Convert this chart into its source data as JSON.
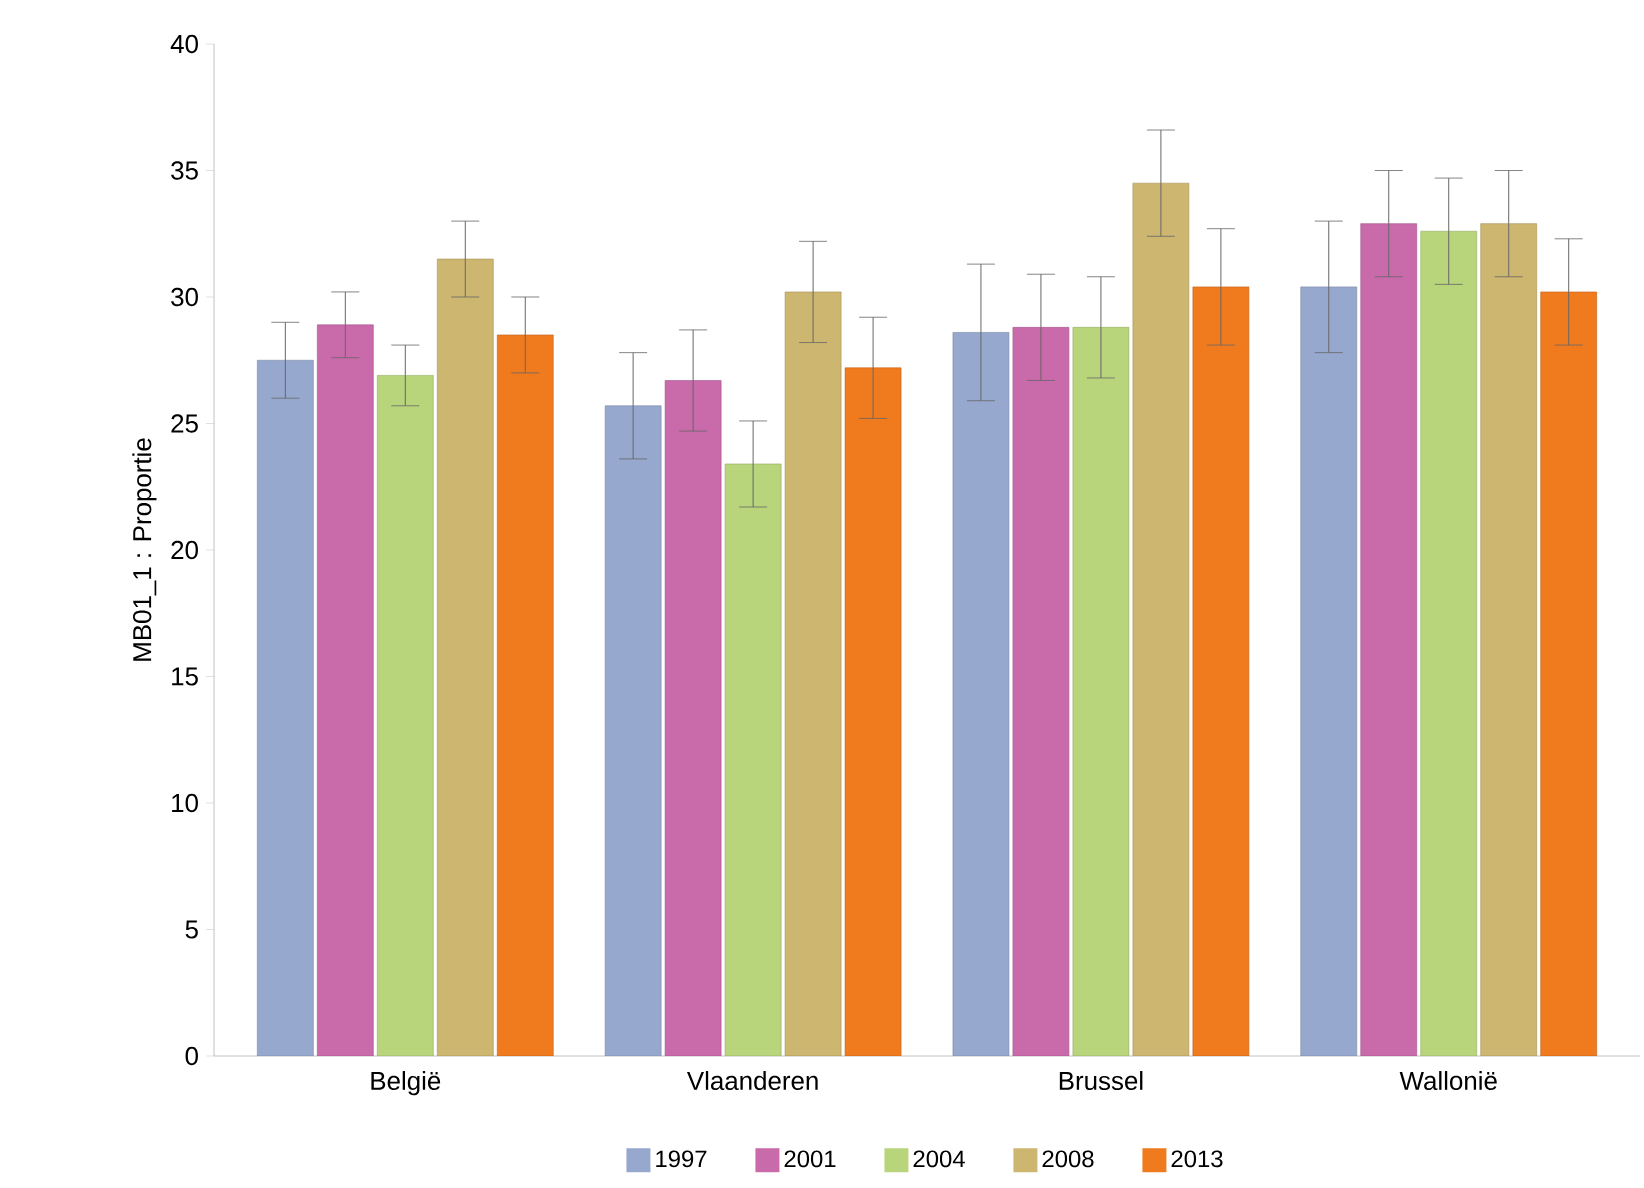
{
  "chart_data": {
    "type": "bar",
    "ylabel": "MB01_1 : Proportie",
    "categories": [
      "België",
      "Vlaanderen",
      "Brussel",
      "Wallonië"
    ],
    "series": [
      {
        "name": "1997",
        "color": "#97a8cf",
        "values": [
          27.5,
          25.7,
          28.6,
          30.4
        ],
        "errors": [
          1.5,
          2.1,
          2.7,
          2.6
        ]
      },
      {
        "name": "2001",
        "color": "#c96aab",
        "values": [
          28.9,
          26.7,
          28.8,
          32.9
        ],
        "errors": [
          1.3,
          2.0,
          2.1,
          2.1
        ]
      },
      {
        "name": "2004",
        "color": "#b8d57c",
        "values": [
          26.9,
          23.4,
          28.8,
          32.6
        ],
        "errors": [
          1.2,
          1.7,
          2.0,
          2.1
        ]
      },
      {
        "name": "2008",
        "color": "#cdb66f",
        "values": [
          31.5,
          30.2,
          34.5,
          32.9
        ],
        "errors": [
          1.5,
          2.0,
          2.1,
          2.1
        ]
      },
      {
        "name": "2013",
        "color": "#f07b1f",
        "values": [
          28.5,
          27.2,
          30.4,
          30.2
        ],
        "errors": [
          1.5,
          2.0,
          2.3,
          2.1
        ]
      }
    ],
    "ylim": [
      0,
      40
    ],
    "yticks": [
      0,
      5,
      10,
      15,
      20,
      25,
      30,
      35,
      40
    ],
    "legend": "bottom",
    "grid": false
  }
}
